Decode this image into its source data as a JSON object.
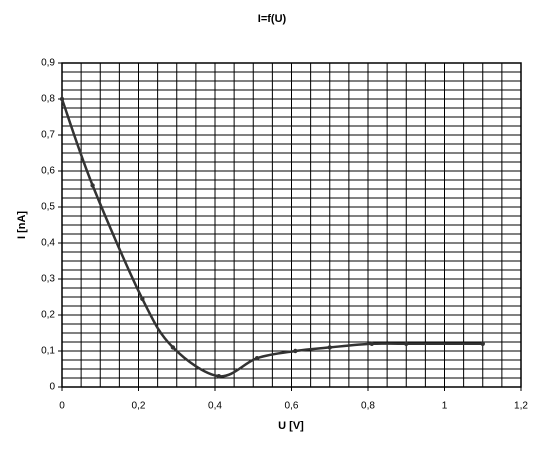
{
  "chart_data": {
    "type": "scatter",
    "title": "I=f(U)",
    "x_label": "U [V]",
    "y_label": "I [nA]",
    "x": [
      0,
      0.08,
      0.21,
      0.29,
      0.41,
      0.51,
      0.61,
      0.7,
      0.81,
      0.9,
      1.1
    ],
    "series": [
      {
        "color": "#333333",
        "values": [
          0.8,
          0.56,
          0.245,
          0.11,
          0.03,
          0.08,
          0.1,
          0.11,
          0.12,
          0.12,
          0.12
        ]
      }
    ],
    "xlim": [
      0,
      1.2
    ],
    "ylim": [
      0,
      0.9
    ],
    "xticks": [
      0,
      {
        "value": 0.2,
        "label": "0,2"
      },
      {
        "value": 0.4,
        "label": "0,4"
      },
      {
        "value": 0.6,
        "label": "0,6"
      },
      {
        "value": 0.8,
        "label": "0,8"
      },
      1,
      {
        "value": 1.2,
        "label": "1,2"
      }
    ],
    "yticks": [
      0,
      {
        "value": 0.1,
        "label": "0,1"
      },
      {
        "value": 0.2,
        "label": "0,2"
      },
      {
        "value": 0.3,
        "label": "0,3"
      },
      {
        "value": 0.4,
        "label": "0,4"
      },
      {
        "value": 0.5,
        "label": "0,5"
      },
      {
        "value": 0.6,
        "label": "0,6"
      },
      {
        "value": 0.7,
        "label": "0,7"
      },
      {
        "value": 0.8,
        "label": "0,8"
      },
      {
        "value": 0.9,
        "label": "0,9"
      }
    ],
    "grid": true,
    "smooth": true
  }
}
